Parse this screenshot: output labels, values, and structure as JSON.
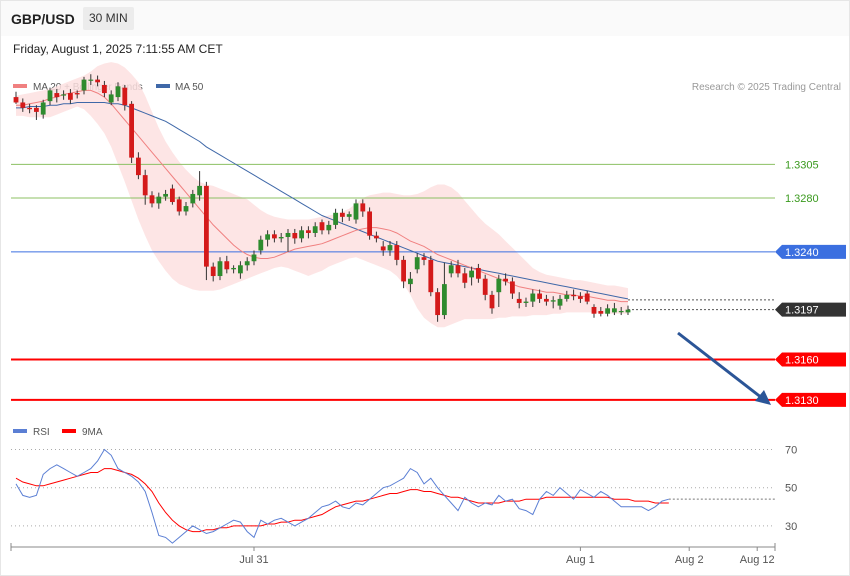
{
  "header": {
    "symbol": "GBP/USD",
    "timeframe": "30 MIN",
    "datetime": "Friday, August 1, 2025 7:11:55 AM CET"
  },
  "colors": {
    "ma20": "#f08080",
    "ma50": "#3f68a8",
    "bollinger": "#fde0e0",
    "up": "#2e8b2e",
    "down": "#d41a1a",
    "support": "#ff0000",
    "resistance_green": "#8cc063",
    "pivot": "#3b6fe0",
    "rsi": "#5b7fd4",
    "rsi_ma": "#ff0000",
    "arrow": "#2b5597"
  },
  "chart_data": [
    {
      "type": "candlestick",
      "legend": [
        {
          "label": "MA 20 + Bollinger Bands",
          "color": "#f08080"
        },
        {
          "label": "MA 50",
          "color": "#3f68a8"
        }
      ],
      "credit": "Research © 2025 Trading Central",
      "ylim": [
        1.3115,
        1.339
      ],
      "levels": [
        {
          "value": 1.3305,
          "label": "1.3305",
          "kind": "resistance"
        },
        {
          "value": 1.328,
          "label": "1.3280",
          "kind": "resistance"
        },
        {
          "value": 1.324,
          "label": "1.3240",
          "kind": "pivot"
        },
        {
          "value": 1.3197,
          "label": "1.3197",
          "kind": "last"
        },
        {
          "value": 1.316,
          "label": "1.3160",
          "kind": "support"
        },
        {
          "value": 1.313,
          "label": "1.3130",
          "kind": "support"
        }
      ],
      "close": [
        1.3351,
        1.3347,
        1.3346,
        1.3344,
        1.3351,
        1.336,
        1.3355,
        1.3357,
        1.3353,
        1.3357,
        1.3368,
        1.3368,
        1.3366,
        1.3358,
        1.3357,
        1.3363,
        1.3349,
        1.331,
        1.3297,
        1.3282,
        1.3276,
        1.3281,
        1.3283,
        1.3277,
        1.327,
        1.3274,
        1.3283,
        1.3289,
        1.3229,
        1.3222,
        1.3233,
        1.3227,
        1.3228,
        1.323,
        1.3233,
        1.3238,
        1.3249,
        1.3253,
        1.325,
        1.3251,
        1.3254,
        1.325,
        1.3256,
        1.3254,
        1.3259,
        1.3256,
        1.326,
        1.3269,
        1.3266,
        1.3268,
        1.3276,
        1.327,
        1.3252,
        1.325,
        1.3241,
        1.3245,
        1.3234,
        1.3218,
        1.322,
        1.3236,
        1.3234,
        1.321,
        1.3193,
        1.3216,
        1.323,
        1.3224,
        1.3217,
        1.3226,
        1.322,
        1.3208,
        1.3198,
        1.322,
        1.3218,
        1.3209,
        1.3202,
        1.3203,
        1.3209,
        1.3205,
        1.3203,
        1.3204,
        1.3205,
        1.3208,
        1.3207,
        1.3205,
        1.3203,
        1.3194,
        1.3194,
        1.3198,
        1.3198,
        1.3196,
        1.3197
      ],
      "open": [
        1.3355,
        1.3351,
        1.3347,
        1.3347,
        1.3342,
        1.3352,
        1.3358,
        1.3357,
        1.3358,
        1.3358,
        1.336,
        1.3368,
        1.3368,
        1.3364,
        1.3351,
        1.3355,
        1.3362,
        1.335,
        1.331,
        1.3297,
        1.3282,
        1.3276,
        1.3281,
        1.3287,
        1.3279,
        1.327,
        1.3276,
        1.3282,
        1.3289,
        1.3229,
        1.3222,
        1.3233,
        1.3227,
        1.3224,
        1.323,
        1.3233,
        1.3241,
        1.3249,
        1.3253,
        1.325,
        1.3251,
        1.3254,
        1.325,
        1.3256,
        1.3254,
        1.3262,
        1.3256,
        1.326,
        1.3269,
        1.3266,
        1.3264,
        1.3276,
        1.327,
        1.3252,
        1.3244,
        1.3241,
        1.3245,
        1.3234,
        1.3216,
        1.3227,
        1.3236,
        1.3234,
        1.321,
        1.3193,
        1.3224,
        1.323,
        1.3224,
        1.3221,
        1.3228,
        1.322,
        1.3208,
        1.321,
        1.322,
        1.3218,
        1.3205,
        1.3202,
        1.3203,
        1.3209,
        1.3205,
        1.3203,
        1.32,
        1.3205,
        1.3208,
        1.3207,
        1.3209,
        1.3199,
        1.3196,
        1.3194,
        1.3195,
        1.3196,
        1.3195
      ],
      "high": [
        1.3359,
        1.3354,
        1.335,
        1.3349,
        1.3353,
        1.3362,
        1.3361,
        1.336,
        1.3361,
        1.336,
        1.337,
        1.3372,
        1.3371,
        1.3367,
        1.336,
        1.3366,
        1.3364,
        1.3352,
        1.3314,
        1.3301,
        1.3285,
        1.3284,
        1.3286,
        1.329,
        1.3281,
        1.3277,
        1.3286,
        1.33,
        1.3292,
        1.3232,
        1.3236,
        1.3237,
        1.323,
        1.3233,
        1.3236,
        1.3241,
        1.3252,
        1.3256,
        1.3256,
        1.3254,
        1.3257,
        1.3257,
        1.3259,
        1.3259,
        1.3262,
        1.3264,
        1.3263,
        1.3272,
        1.3272,
        1.327,
        1.3279,
        1.3279,
        1.3273,
        1.3255,
        1.3248,
        1.3248,
        1.3248,
        1.3237,
        1.3225,
        1.3239,
        1.3239,
        1.3237,
        1.3213,
        1.3232,
        1.3233,
        1.3234,
        1.3228,
        1.3229,
        1.3231,
        1.3223,
        1.3211,
        1.3223,
        1.3224,
        1.3221,
        1.321,
        1.3206,
        1.3212,
        1.3212,
        1.3208,
        1.3207,
        1.3208,
        1.3211,
        1.3212,
        1.321,
        1.3211,
        1.3201,
        1.3199,
        1.3201,
        1.3202,
        1.3199,
        1.32
      ],
      "low": [
        1.335,
        1.3344,
        1.3343,
        1.3338,
        1.3339,
        1.3349,
        1.3351,
        1.3353,
        1.335,
        1.3354,
        1.3357,
        1.3364,
        1.3363,
        1.3355,
        1.3349,
        1.3352,
        1.3345,
        1.3306,
        1.3294,
        1.3275,
        1.3273,
        1.3272,
        1.3278,
        1.3275,
        1.3267,
        1.3267,
        1.3273,
        1.3278,
        1.3219,
        1.3218,
        1.3219,
        1.3224,
        1.3224,
        1.322,
        1.3226,
        1.323,
        1.3238,
        1.3244,
        1.3247,
        1.3247,
        1.324,
        1.3246,
        1.3247,
        1.325,
        1.3251,
        1.3253,
        1.3253,
        1.3257,
        1.3262,
        1.3263,
        1.3261,
        1.3266,
        1.3249,
        1.3247,
        1.3237,
        1.3237,
        1.323,
        1.3213,
        1.321,
        1.3224,
        1.323,
        1.3207,
        1.3188,
        1.319,
        1.3221,
        1.3221,
        1.3213,
        1.3215,
        1.3217,
        1.3204,
        1.3194,
        1.3199,
        1.3215,
        1.3205,
        1.3198,
        1.3199,
        1.3199,
        1.3202,
        1.32,
        1.3198,
        1.3197,
        1.3203,
        1.3204,
        1.3202,
        1.3201,
        1.3191,
        1.3192,
        1.3192,
        1.3193,
        1.3193,
        1.3193
      ],
      "ma20": [
        1.3349,
        1.3349,
        1.335,
        1.3351,
        1.3352,
        1.3354,
        1.3355,
        1.3357,
        1.3358,
        1.3359,
        1.336,
        1.336,
        1.3358,
        1.3355,
        1.335,
        1.3344,
        1.3338,
        1.3332,
        1.3326,
        1.332,
        1.3314,
        1.3308,
        1.3302,
        1.3296,
        1.329,
        1.3284,
        1.3278,
        1.3272,
        1.3266,
        1.326,
        1.3255,
        1.325,
        1.3245,
        1.3241,
        1.3238,
        1.3236,
        1.3235,
        1.3235,
        1.3236,
        1.3238,
        1.324,
        1.3242,
        1.3243,
        1.3244,
        1.3245,
        1.3246,
        1.3248,
        1.325,
        1.3252,
        1.3254,
        1.3256,
        1.3257,
        1.3258,
        1.3258,
        1.3257,
        1.3256,
        1.3254,
        1.3251,
        1.3248,
        1.3246,
        1.3244,
        1.3241,
        1.3238,
        1.3236,
        1.3234,
        1.3232,
        1.323,
        1.3228,
        1.3226,
        1.3224,
        1.3222,
        1.322,
        1.3218,
        1.3216,
        1.3214,
        1.3213,
        1.3212,
        1.3211,
        1.321,
        1.321,
        1.3209,
        1.3208,
        1.3208,
        1.3207,
        1.3207,
        1.3206,
        1.3205,
        1.3204,
        1.3204,
        1.3203,
        1.3203
      ],
      "ma50": [
        1.3347,
        1.3347,
        1.3348,
        1.3348,
        1.3348,
        1.3349,
        1.3349,
        1.335,
        1.335,
        1.3351,
        1.3351,
        1.3351,
        1.3351,
        1.3351,
        1.335,
        1.335,
        1.3349,
        1.3347,
        1.3345,
        1.3343,
        1.3341,
        1.3339,
        1.3337,
        1.3334,
        1.3331,
        1.3328,
        1.3325,
        1.3322,
        1.3318,
        1.3315,
        1.3312,
        1.3309,
        1.3306,
        1.3303,
        1.33,
        1.3297,
        1.3294,
        1.3291,
        1.3288,
        1.3285,
        1.3282,
        1.3279,
        1.3276,
        1.3273,
        1.327,
        1.3267,
        1.3265,
        1.3263,
        1.3261,
        1.3259,
        1.3257,
        1.3255,
        1.3253,
        1.3251,
        1.3249,
        1.3247,
        1.3245,
        1.3243,
        1.3241,
        1.3239,
        1.3237,
        1.3235,
        1.3233,
        1.3232,
        1.3231,
        1.323,
        1.3229,
        1.3228,
        1.3227,
        1.3226,
        1.3225,
        1.3224,
        1.3223,
        1.3222,
        1.3221,
        1.322,
        1.3219,
        1.3218,
        1.3217,
        1.3216,
        1.3215,
        1.3214,
        1.3213,
        1.3212,
        1.3211,
        1.321,
        1.3209,
        1.3208,
        1.3207,
        1.3206,
        1.3205
      ],
      "bb_upper": [
        1.3356,
        1.3357,
        1.3358,
        1.3359,
        1.336,
        1.3361,
        1.3363,
        1.3365,
        1.3367,
        1.3369,
        1.3371,
        1.3374,
        1.3378,
        1.338,
        1.3381,
        1.338,
        1.3377,
        1.3372,
        1.3366,
        1.3356,
        1.3344,
        1.3332,
        1.3322,
        1.3314,
        1.3307,
        1.3301,
        1.3296,
        1.3292,
        1.329,
        1.3289,
        1.3287,
        1.3285,
        1.3283,
        1.3281,
        1.3279,
        1.3275,
        1.3271,
        1.3268,
        1.3266,
        1.3265,
        1.3264,
        1.3264,
        1.3264,
        1.3264,
        1.3265,
        1.3266,
        1.3267,
        1.3268,
        1.327,
        1.3272,
        1.3276,
        1.328,
        1.3282,
        1.3283,
        1.3284,
        1.3284,
        1.3283,
        1.3282,
        1.3282,
        1.3283,
        1.3285,
        1.3288,
        1.329,
        1.329,
        1.3288,
        1.3284,
        1.3278,
        1.3272,
        1.3266,
        1.3261,
        1.3257,
        1.3253,
        1.3248,
        1.3243,
        1.3238,
        1.3233,
        1.3228,
        1.3225,
        1.3223,
        1.3222,
        1.3221,
        1.322,
        1.3219,
        1.3219,
        1.3218,
        1.3217,
        1.3216,
        1.3215,
        1.3215,
        1.3214,
        1.3213
      ],
      "bb_lower": [
        1.3341,
        1.3341,
        1.334,
        1.334,
        1.334,
        1.334,
        1.3342,
        1.3344,
        1.3346,
        1.3348,
        1.3346,
        1.3341,
        1.3335,
        1.3328,
        1.3318,
        1.3305,
        1.3292,
        1.3278,
        1.3264,
        1.3252,
        1.3241,
        1.3233,
        1.3226,
        1.322,
        1.3216,
        1.3214,
        1.3212,
        1.3211,
        1.3211,
        1.3211,
        1.3212,
        1.3214,
        1.3216,
        1.3218,
        1.322,
        1.3222,
        1.3224,
        1.3226,
        1.3228,
        1.3229,
        1.3228,
        1.3226,
        1.3224,
        1.3222,
        1.3224,
        1.3226,
        1.3229,
        1.3231,
        1.3233,
        1.3235,
        1.3236,
        1.3234,
        1.3232,
        1.323,
        1.3228,
        1.3226,
        1.3222,
        1.3216,
        1.3208,
        1.3198,
        1.3191,
        1.3187,
        1.3184,
        1.3184,
        1.3186,
        1.3188,
        1.319,
        1.319,
        1.319,
        1.319,
        1.319,
        1.3191,
        1.3191,
        1.3192,
        1.3192,
        1.3192,
        1.3193,
        1.3193,
        1.3193,
        1.3194,
        1.3194,
        1.3195,
        1.3195,
        1.3195,
        1.3195,
        1.3195,
        1.3194,
        1.3194,
        1.3194,
        1.3194,
        1.3194
      ]
    },
    {
      "type": "line",
      "legend": [
        {
          "label": "RSI",
          "color": "#5b7fd4"
        },
        {
          "label": "9MA",
          "color": "#ff0000"
        }
      ],
      "ylim": [
        20,
        75
      ],
      "yticks": [
        {
          "value": 70,
          "label": "70"
        },
        {
          "value": 50,
          "label": "50"
        },
        {
          "value": 30,
          "label": "30"
        }
      ],
      "xticks": [
        {
          "index": 35,
          "label": "Jul 31"
        },
        {
          "index": 83,
          "label": "Aug 1"
        },
        {
          "index": 99,
          "label": "Aug 2"
        },
        {
          "index": 109,
          "label": "Aug 12"
        }
      ],
      "rsi": [
        52,
        46,
        45,
        46,
        57,
        60,
        62,
        60,
        58,
        56,
        58,
        60,
        64,
        70,
        67,
        60,
        58,
        56,
        53,
        48,
        37,
        25,
        24,
        21,
        24,
        27,
        30,
        28,
        26,
        27,
        29,
        31,
        33,
        32,
        27,
        24,
        33,
        31,
        33,
        34,
        32,
        30,
        32,
        34,
        37,
        40,
        41,
        43,
        40,
        39,
        42,
        41,
        44,
        47,
        50,
        51,
        53,
        55,
        60,
        58,
        52,
        55,
        50,
        46,
        42,
        38,
        45,
        42,
        40,
        42,
        41,
        46,
        43,
        44,
        39,
        38,
        36,
        44,
        48,
        46,
        50,
        47,
        44,
        49,
        47,
        45,
        48,
        46,
        43,
        40,
        40,
        40,
        40,
        38,
        40,
        43,
        44
      ],
      "rsi_ma": [
        55,
        53,
        52,
        51,
        51,
        52,
        53,
        54,
        55,
        56,
        57,
        58,
        58,
        60,
        60,
        59,
        58,
        57,
        55,
        52,
        48,
        42,
        37,
        33,
        30,
        28,
        27,
        27,
        28,
        28,
        29,
        29,
        30,
        30,
        30,
        30,
        30,
        31,
        31,
        32,
        32,
        33,
        33,
        34,
        35,
        36,
        38,
        40,
        41,
        42,
        43,
        43,
        44,
        45,
        46,
        47,
        47,
        48,
        49,
        49,
        48,
        48,
        47,
        46,
        45,
        45,
        44,
        43,
        42,
        42,
        42,
        42,
        43,
        43,
        43,
        44,
        44,
        44,
        45,
        45,
        45,
        45,
        45,
        45,
        45,
        45,
        45,
        45,
        44,
        44,
        44,
        43,
        43,
        43,
        42,
        42,
        42
      ]
    }
  ]
}
